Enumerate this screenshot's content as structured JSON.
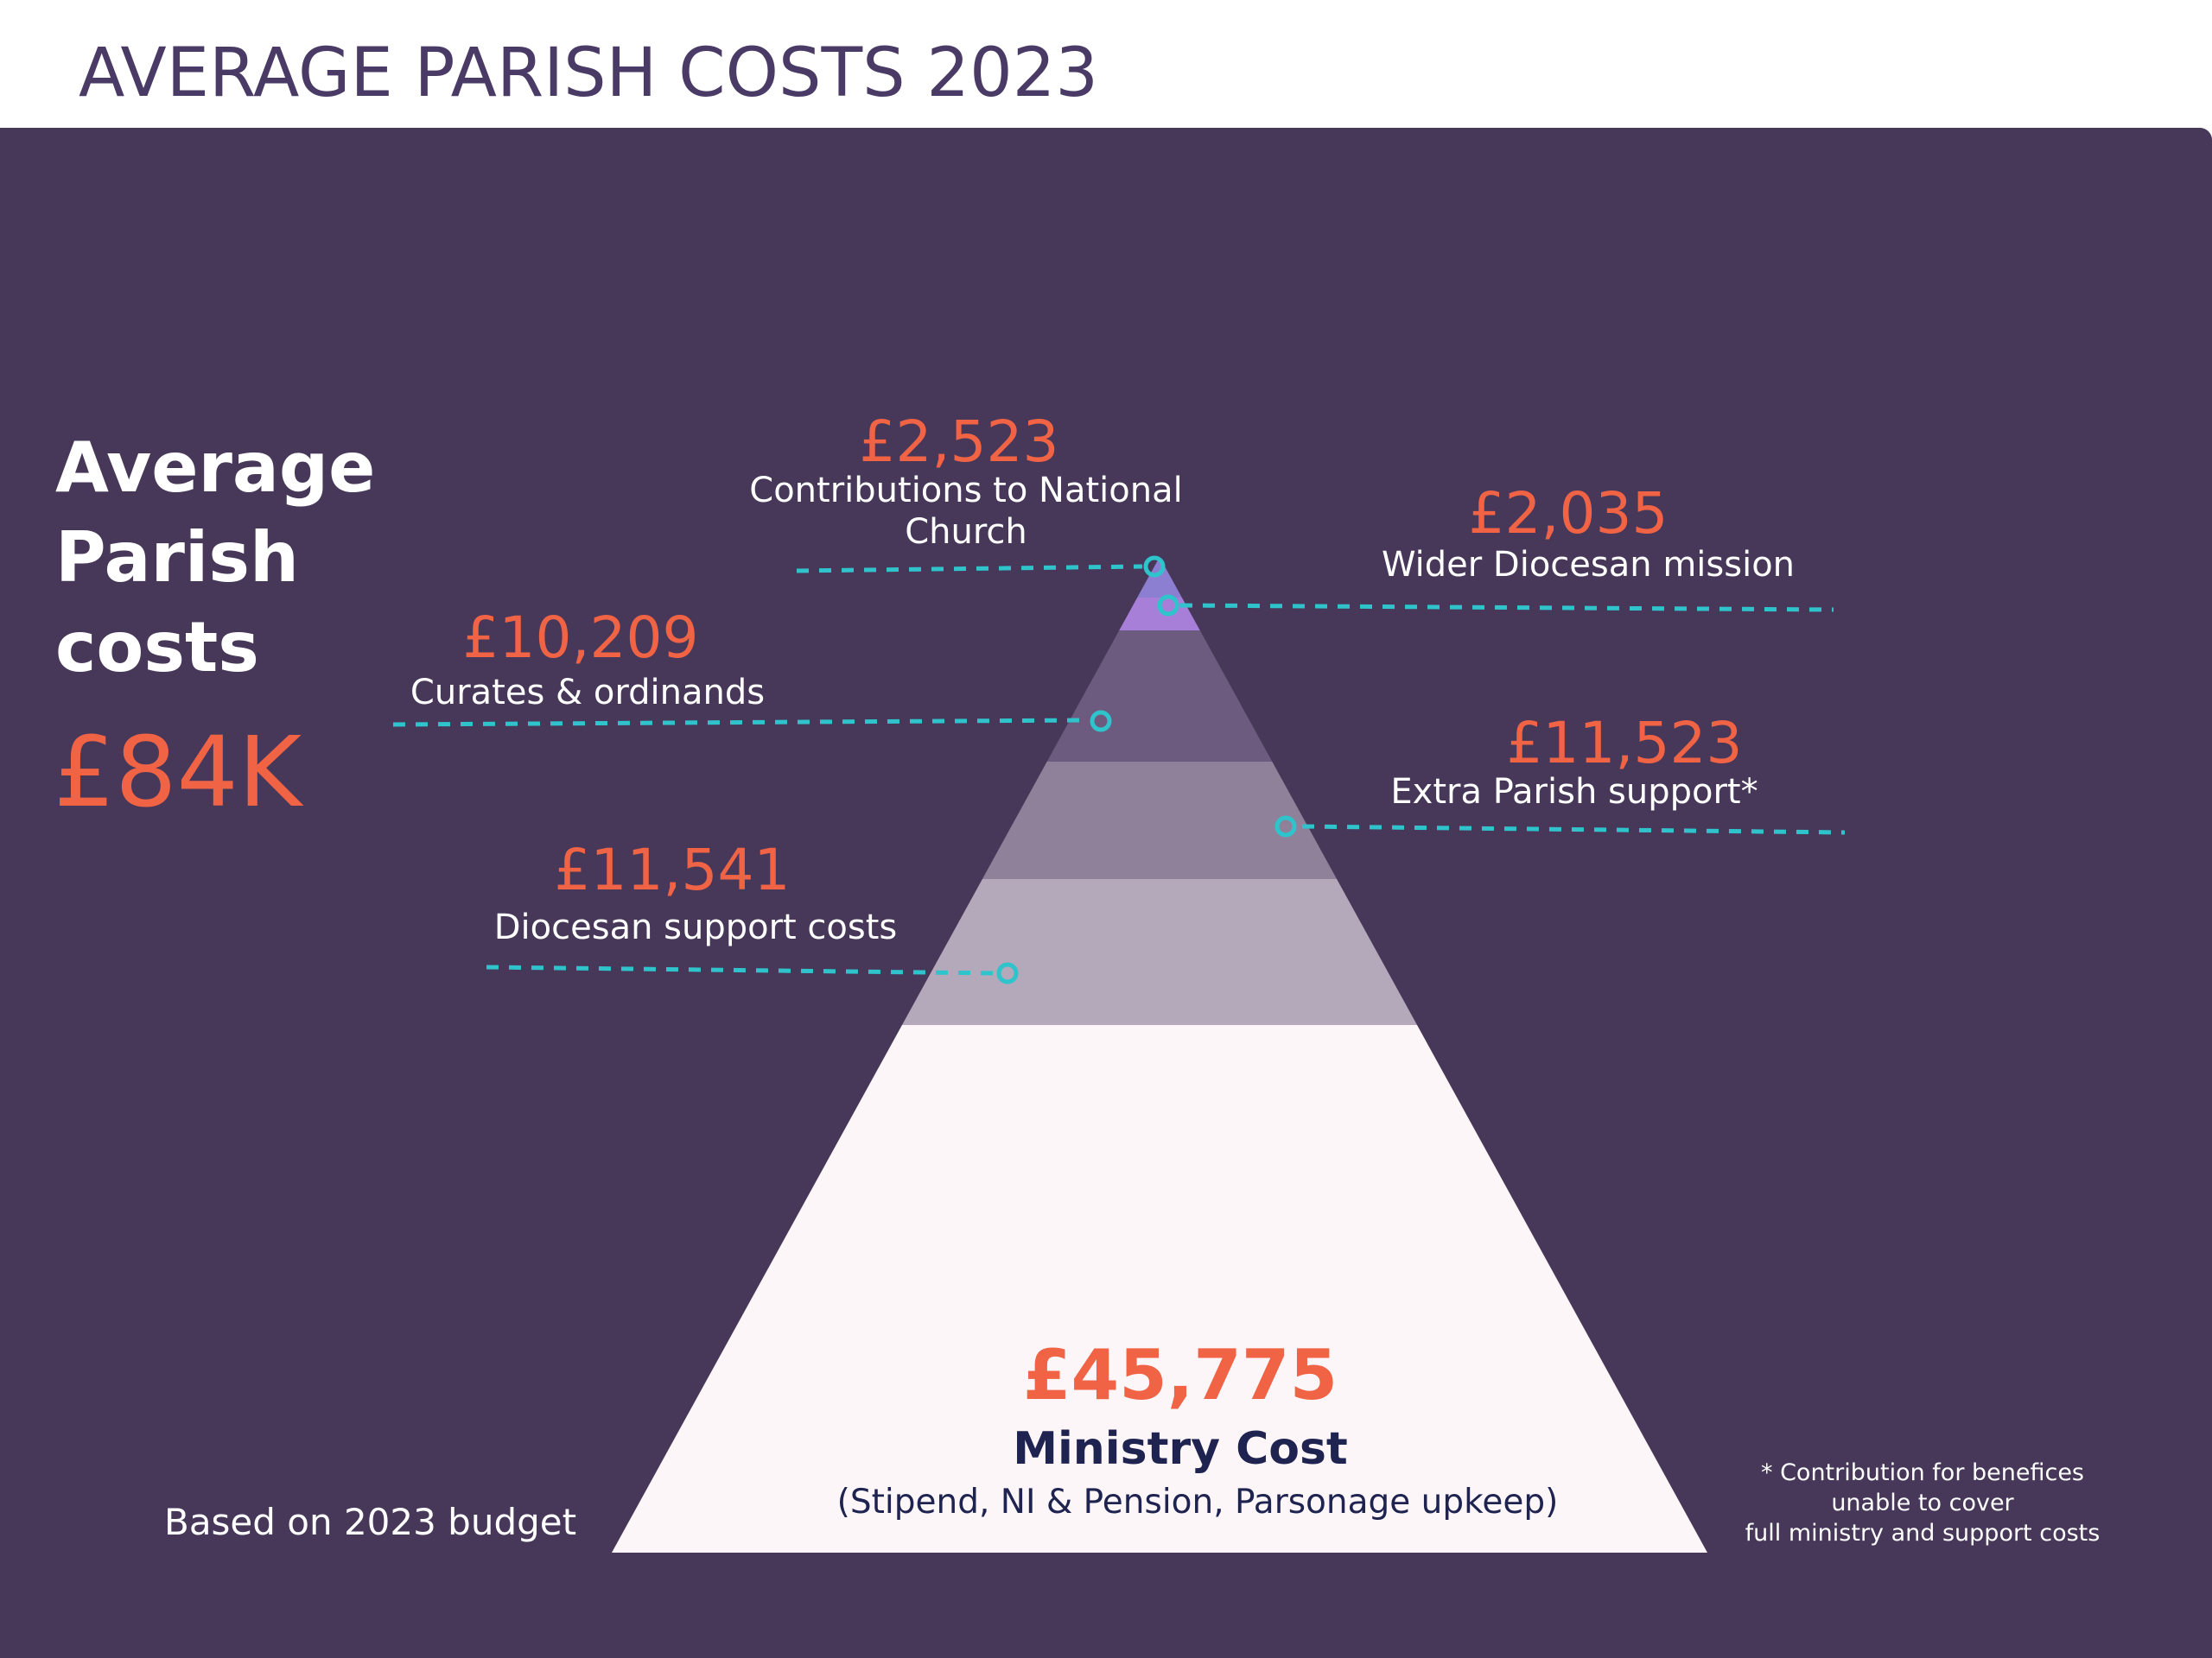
{
  "title": "AVERAGE PARISH COSTS 2023",
  "summary": {
    "heading": "Average Parish costs",
    "total": "£84K"
  },
  "budget_note": "Based on 2023 budget",
  "footnote": "* Contribution for benefices\nunable to cover\nfull ministry and support costs",
  "colors": {
    "panel_background": "#473859",
    "title_text": "#4a3a66",
    "value_text": "#f06345",
    "leader_line": "#2fc4cc",
    "ministry_label": "#1f2350",
    "tier_national": "#8c7fd1",
    "tier_wider_diocesan": "#a77ed8",
    "tier_curates": "#6d5a7f",
    "tier_extra_parish": "#8e8199",
    "tier_diocesan_support": "#b3a9ba",
    "tier_ministry": "#fcf6f9"
  },
  "chart_data": {
    "type": "pyramid",
    "items": [
      {
        "label": "Contributions to National Church",
        "label_lines": [
          "Contributions to National",
          "Church"
        ],
        "value": 2523,
        "display": "£2,523",
        "side": "left",
        "color": "#8c7fd1"
      },
      {
        "label": "Wider Diocesan mission",
        "label_lines": [
          "Wider Diocesan mission"
        ],
        "value": 2035,
        "display": "£2,035",
        "side": "right",
        "color": "#a77ed8"
      },
      {
        "label": "Curates & ordinands",
        "label_lines": [
          "Curates & ordinands"
        ],
        "value": 10209,
        "display": "£10,209",
        "side": "left",
        "color": "#6d5a7f"
      },
      {
        "label": "Extra Parish support*",
        "label_lines": [
          "Extra Parish support*"
        ],
        "value": 11523,
        "display": "£11,523",
        "side": "right",
        "color": "#8e8199"
      },
      {
        "label": "Diocesan support costs",
        "label_lines": [
          "Diocesan support costs"
        ],
        "value": 11541,
        "display": "£11,541",
        "side": "left",
        "color": "#b3a9ba"
      },
      {
        "label": "Ministry Cost",
        "sublabel": "(Stipend, NI & Pension, Parsonage upkeep)",
        "value": 45775,
        "display": "£45,775",
        "side": "inside",
        "color": "#fcf6f9"
      }
    ]
  }
}
